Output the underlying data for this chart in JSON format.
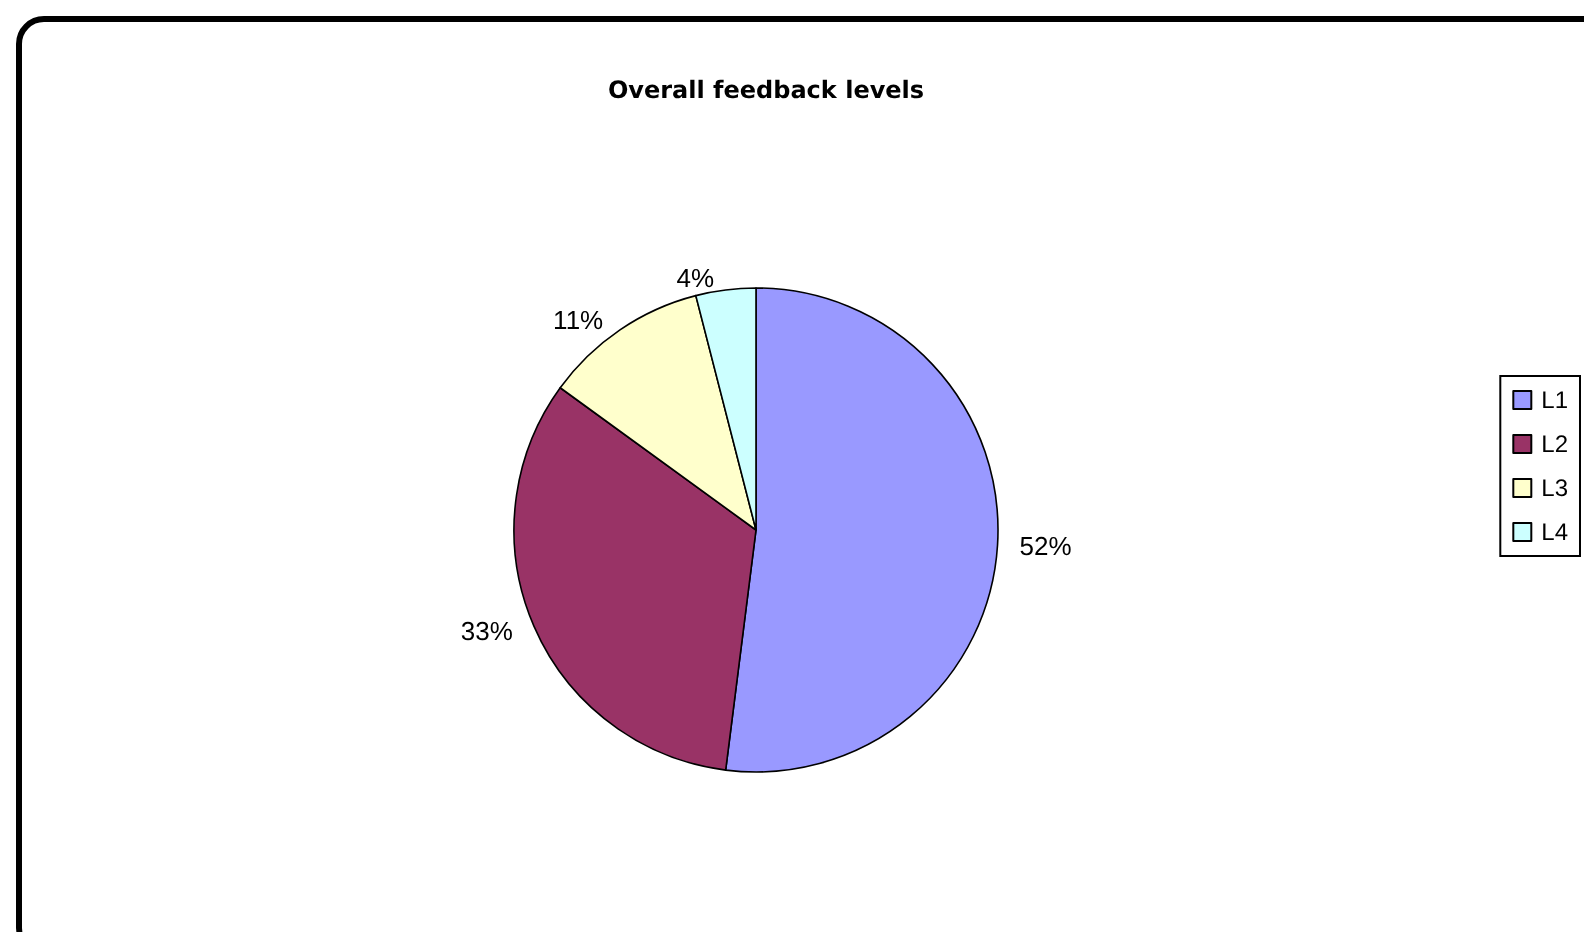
{
  "chart_data": {
    "type": "pie",
    "title": "Overall feedback levels",
    "categories": [
      "L1",
      "L2",
      "L3",
      "L4"
    ],
    "values": [
      52,
      33,
      11,
      4
    ],
    "colors": [
      "#9999ff",
      "#993366",
      "#ffffcc",
      "#ccffff"
    ],
    "value_labels": [
      "52%",
      "33%",
      "11%",
      "4%"
    ],
    "legend": "right"
  }
}
